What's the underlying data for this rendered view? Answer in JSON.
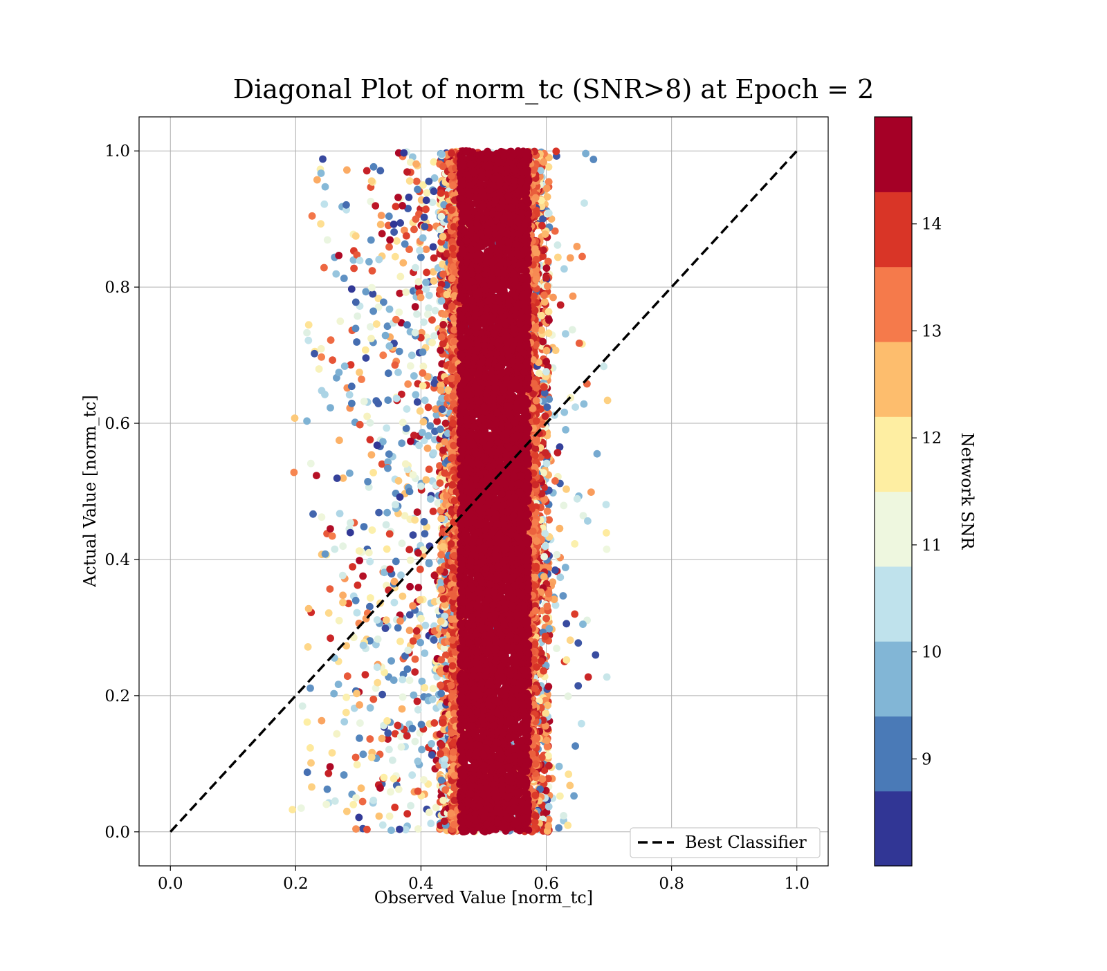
{
  "chart_data": {
    "type": "scatter",
    "title": "Diagonal Plot of norm_tc (SNR>8) at Epoch = 2",
    "xlabel": "Observed Value [norm_tc]",
    "ylabel": "Actual Value [norm_tc]",
    "xlim": [
      -0.05,
      1.05
    ],
    "ylim": [
      -0.05,
      1.05
    ],
    "xticks": [
      0.0,
      0.2,
      0.4,
      0.6,
      0.8,
      1.0
    ],
    "yticks": [
      0.0,
      0.2,
      0.4,
      0.6,
      0.8,
      1.0
    ],
    "tick_labels": [
      "0.0",
      "0.2",
      "0.4",
      "0.6",
      "0.8",
      "1.0"
    ],
    "grid": true,
    "legend": {
      "placement": "lower-right",
      "entries": [
        {
          "label": "Best Classifier",
          "style": "dashed",
          "color": "#000000"
        }
      ]
    },
    "best_classifier_line": {
      "x": [
        0.0,
        1.0
      ],
      "y": [
        0.0,
        1.0
      ]
    },
    "colorbar": {
      "label": "Network SNR",
      "range": [
        8,
        15
      ],
      "ticks": [
        9,
        10,
        11,
        12,
        13,
        14
      ],
      "tick_labels": [
        "9",
        "10",
        "11",
        "12",
        "13",
        "14"
      ],
      "colors": [
        "#313695",
        "#4a7ab7",
        "#82b6d6",
        "#bfe2ec",
        "#eef7df",
        "#feeea2",
        "#fdbd6d",
        "#f57a4b",
        "#d93527",
        "#a50026"
      ]
    },
    "distribution": {
      "description_of_points": "dense core of high-SNR points",
      "core_x_range": [
        0.45,
        0.59
      ],
      "core_snr": 15,
      "scatter_x_range": [
        0.19,
        0.7
      ],
      "y_range": [
        0.0,
        1.0
      ],
      "approx_point_count": 16000
    }
  }
}
